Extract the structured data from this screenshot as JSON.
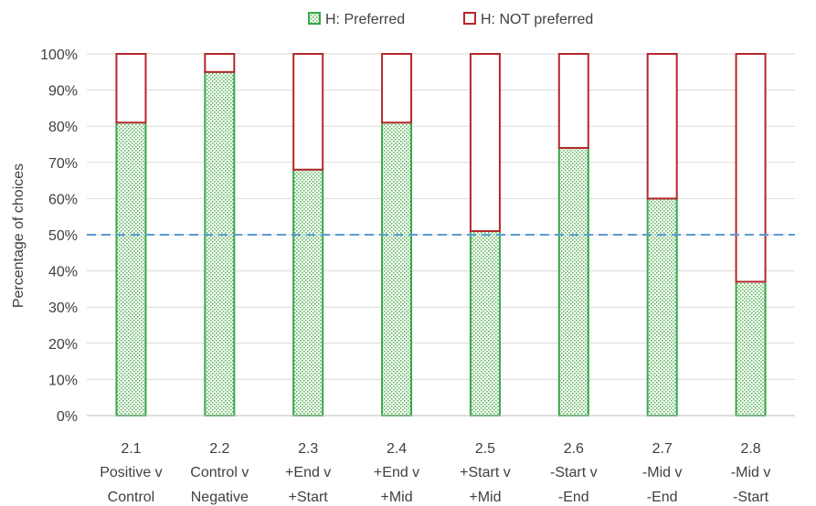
{
  "chart_data": {
    "type": "bar",
    "stacked": true,
    "percent_stacked": true,
    "ylabel": "Percentage of choices",
    "xlabel": "",
    "ylim": [
      0,
      100
    ],
    "yticks": [
      "0%",
      "10%",
      "20%",
      "30%",
      "40%",
      "50%",
      "60%",
      "70%",
      "80%",
      "90%",
      "100%"
    ],
    "legend_position": "top",
    "reference_line": {
      "value": 50,
      "style": "dashed",
      "color": "#5b9bd5"
    },
    "categories": [
      {
        "num": "2.1",
        "line1": "Positive v",
        "line2": "Control"
      },
      {
        "num": "2.2",
        "line1": "Control v",
        "line2": "Negative"
      },
      {
        "num": "2.3",
        "line1": "+End v",
        "line2": "+Start"
      },
      {
        "num": "2.4",
        "line1": "+End v",
        "line2": "+Mid"
      },
      {
        "num": "2.5",
        "line1": "+Start v",
        "line2": "+Mid"
      },
      {
        "num": "2.6",
        "line1": "-Start v",
        "line2": "-End"
      },
      {
        "num": "2.7",
        "line1": "-Mid v",
        "line2": "-End"
      },
      {
        "num": "2.8",
        "line1": "-Mid v",
        "line2": "-Start"
      }
    ],
    "series": [
      {
        "name": "H: Preferred",
        "color": "#38a84a",
        "fill": "dotted-green",
        "values": [
          81,
          95,
          68,
          81,
          51,
          74,
          60,
          37
        ]
      },
      {
        "name": "H: NOT preferred",
        "color": "#b5262a",
        "fill": "white",
        "values": [
          19,
          5,
          32,
          19,
          49,
          26,
          40,
          63
        ]
      }
    ]
  }
}
